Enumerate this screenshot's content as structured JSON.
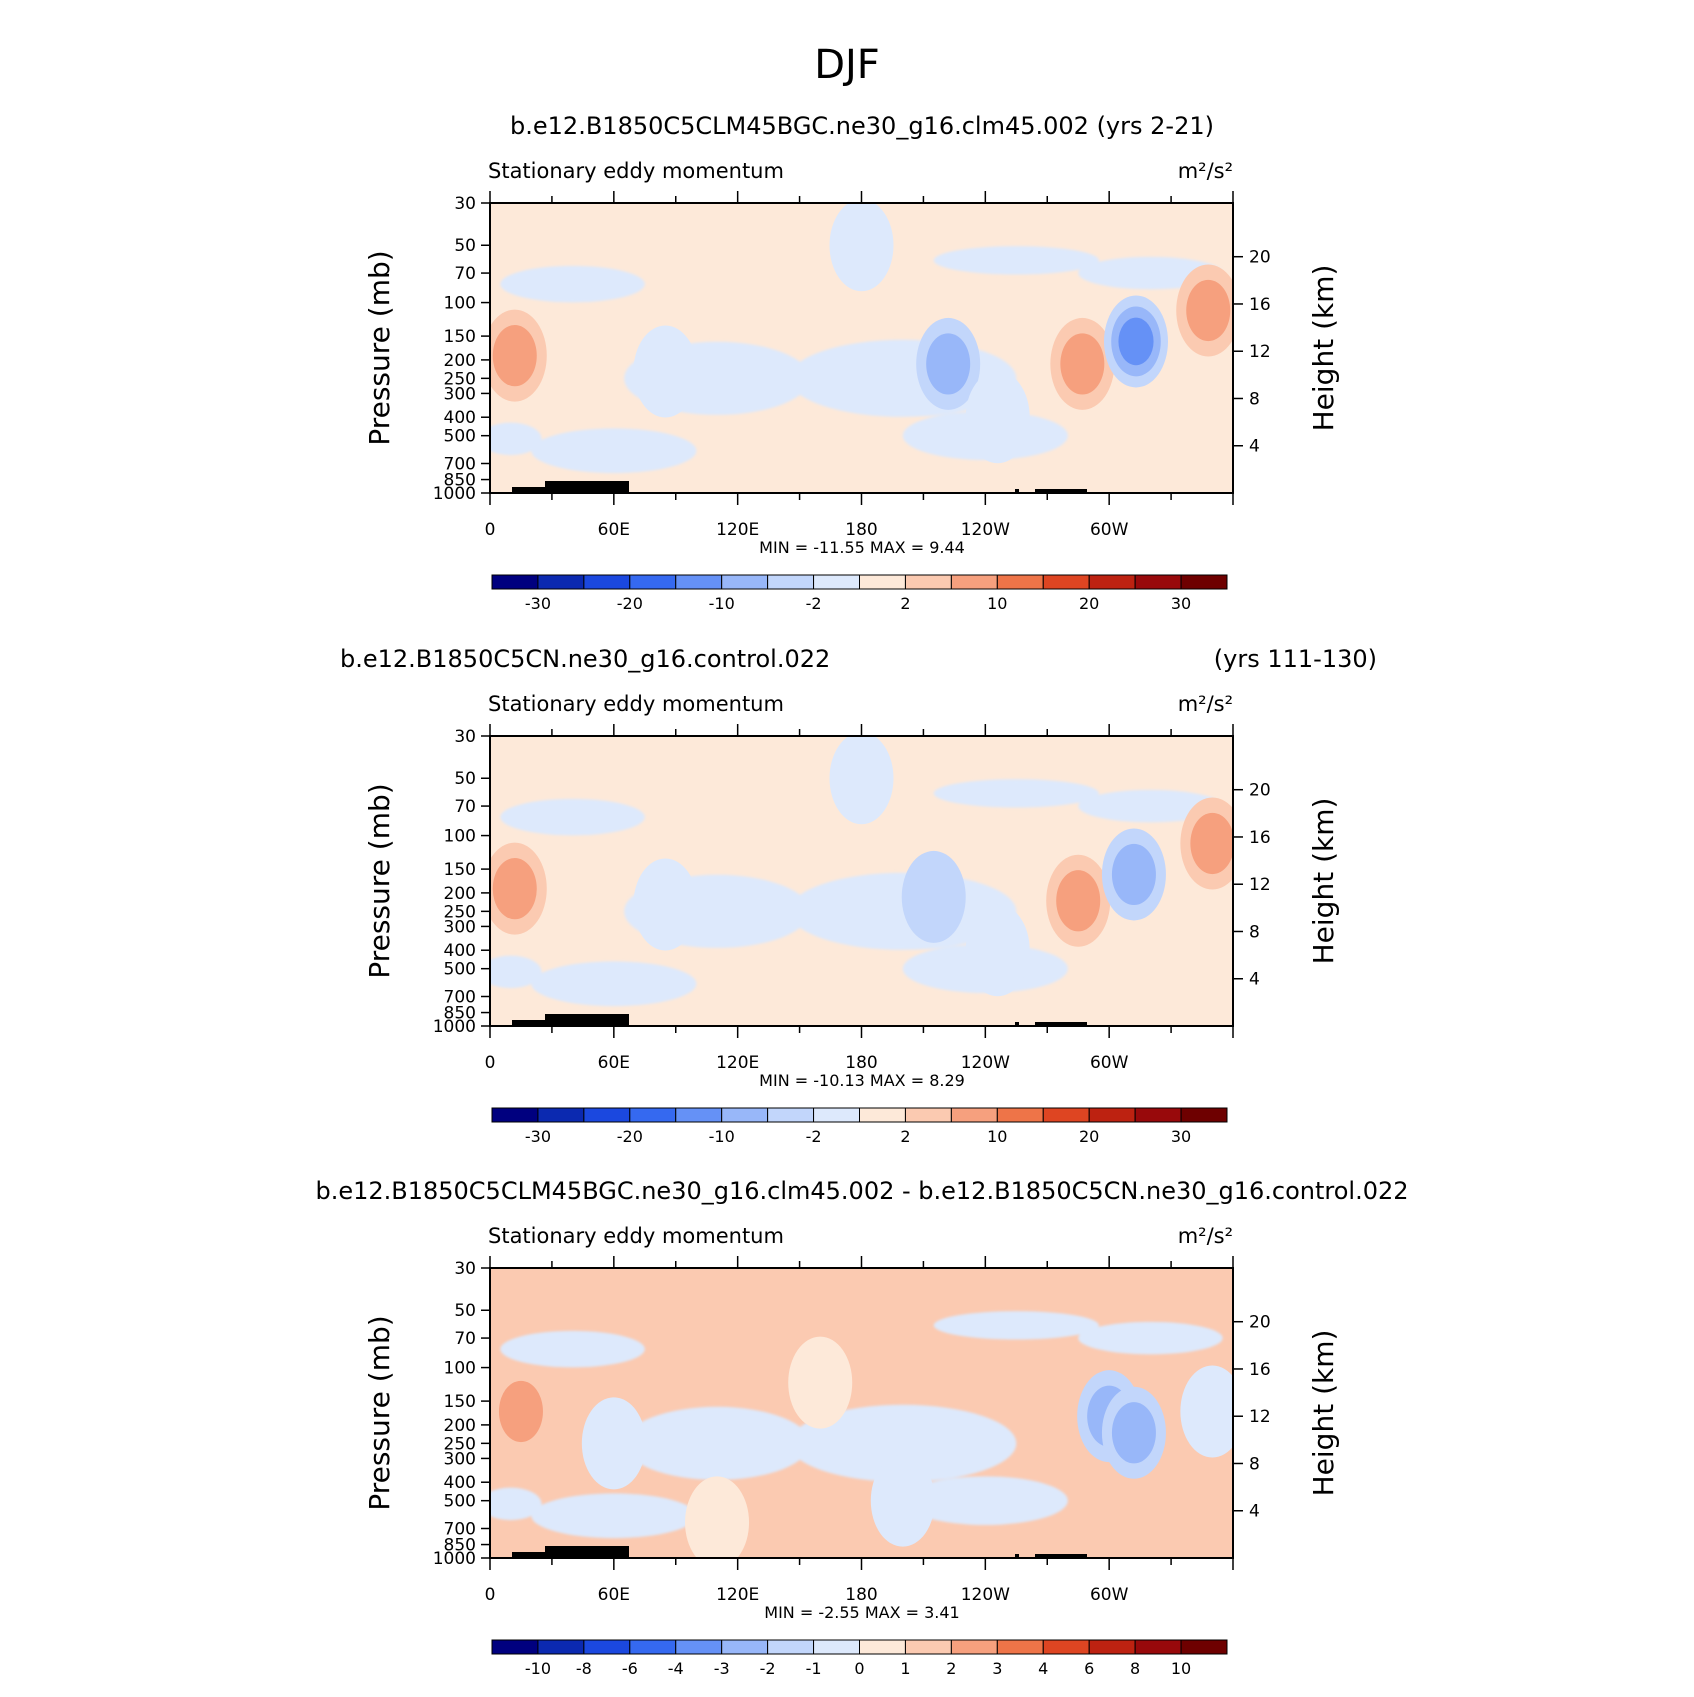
{
  "page_title": "DJF",
  "chart_data": [
    {
      "type": "heatmap",
      "title": "b.e12.B1850C5CLM45BGC.ne30_g16.clm45.002 (yrs 2-21)",
      "title_right": "",
      "variable": "Stationary eddy momentum",
      "units": "m²/s²",
      "xticks": [
        "0",
        "60E",
        "120E",
        "180",
        "120W",
        "60W"
      ],
      "x_tick_values": [
        0,
        60,
        120,
        180,
        240,
        300
      ],
      "xlim": [
        0,
        360
      ],
      "ylabel": "Pressure (mb)",
      "yticks": [
        "30",
        "50",
        "70",
        "100",
        "150",
        "200",
        "250",
        "300",
        "400",
        "500",
        "700",
        "850",
        "1000"
      ],
      "ylim": [
        1000,
        30
      ],
      "y2label": "Height (km)",
      "y2ticks": [
        "4",
        "8",
        "12",
        "16",
        "20"
      ],
      "stats": "MIN = -11.55   MAX =   9.44",
      "min": -11.55,
      "max": 9.44,
      "colorbar_labels": [
        "-30",
        "-20",
        "-10",
        "-2",
        "2",
        "10",
        "20",
        "30"
      ],
      "colorbar_label_indices": [
        1,
        3,
        5,
        7,
        9,
        11,
        13,
        15
      ],
      "features": [
        {
          "lon": 12,
          "p": 190,
          "value": 8
        },
        {
          "lon": 85,
          "p": 230,
          "value": -1
        },
        {
          "lon": 222,
          "p": 210,
          "value": -5
        },
        {
          "lon": 287,
          "p": 210,
          "value": 6
        },
        {
          "lon": 313,
          "p": 160,
          "value": -11
        },
        {
          "lon": 348,
          "p": 110,
          "value": 5
        },
        {
          "lon": 150,
          "p": 700,
          "value": 1.5
        },
        {
          "lon": 246,
          "p": 400,
          "value": -1.5
        },
        {
          "lon": 120,
          "p": 60,
          "value": 1.5
        },
        {
          "lon": 180,
          "p": 50,
          "value": -1.5
        }
      ]
    },
    {
      "type": "heatmap",
      "title": "b.e12.B1850C5CN.ne30_g16.control.022",
      "title_right": "(yrs 111-130)",
      "variable": "Stationary eddy momentum",
      "units": "m²/s²",
      "xticks": [
        "0",
        "60E",
        "120E",
        "180",
        "120W",
        "60W"
      ],
      "x_tick_values": [
        0,
        60,
        120,
        180,
        240,
        300
      ],
      "xlim": [
        0,
        360
      ],
      "ylabel": "Pressure (mb)",
      "yticks": [
        "30",
        "50",
        "70",
        "100",
        "150",
        "200",
        "250",
        "300",
        "400",
        "500",
        "700",
        "850",
        "1000"
      ],
      "ylim": [
        1000,
        30
      ],
      "y2label": "Height (km)",
      "y2ticks": [
        "4",
        "8",
        "12",
        "16",
        "20"
      ],
      "stats": "MIN = -10.13   MAX =   8.29",
      "min": -10.13,
      "max": 8.29,
      "colorbar_labels": [
        "-30",
        "-20",
        "-10",
        "-2",
        "2",
        "10",
        "20",
        "30"
      ],
      "colorbar_label_indices": [
        1,
        3,
        5,
        7,
        9,
        11,
        13,
        15
      ],
      "features": [
        {
          "lon": 12,
          "p": 190,
          "value": 7
        },
        {
          "lon": 85,
          "p": 230,
          "value": -1
        },
        {
          "lon": 215,
          "p": 210,
          "value": -4
        },
        {
          "lon": 285,
          "p": 220,
          "value": 5
        },
        {
          "lon": 312,
          "p": 160,
          "value": -9
        },
        {
          "lon": 350,
          "p": 110,
          "value": 5
        },
        {
          "lon": 150,
          "p": 700,
          "value": 1.5
        },
        {
          "lon": 246,
          "p": 400,
          "value": -1.5
        },
        {
          "lon": 120,
          "p": 60,
          "value": 1.5
        },
        {
          "lon": 180,
          "p": 50,
          "value": -1.5
        }
      ]
    },
    {
      "type": "heatmap",
      "title": "b.e12.B1850C5CLM45BGC.ne30_g16.clm45.002 - b.e12.B1850C5CN.ne30_g16.control.022",
      "title_right": "",
      "variable": "Stationary eddy momentum",
      "units": "m²/s²",
      "xticks": [
        "0",
        "60E",
        "120E",
        "180",
        "120W",
        "60W"
      ],
      "x_tick_values": [
        0,
        60,
        120,
        180,
        240,
        300
      ],
      "xlim": [
        0,
        360
      ],
      "ylabel": "Pressure (mb)",
      "yticks": [
        "30",
        "50",
        "70",
        "100",
        "150",
        "200",
        "250",
        "300",
        "400",
        "500",
        "700",
        "850",
        "1000"
      ],
      "ylim": [
        1000,
        30
      ],
      "y2label": "Height (km)",
      "y2ticks": [
        "4",
        "8",
        "12",
        "16",
        "20"
      ],
      "stats": "MIN =   -2.55   MAX =   3.41",
      "min": -2.55,
      "max": 3.41,
      "colorbar_labels": [
        "-10",
        "-8",
        "-6",
        "-4",
        "-3",
        "-2",
        "-1",
        "0",
        "1",
        "2",
        "3",
        "4",
        "6",
        "8",
        "10"
      ],
      "colorbar_label_indices": [
        1,
        2,
        3,
        4,
        5,
        6,
        7,
        8,
        9,
        10,
        11,
        12,
        13,
        14,
        15
      ],
      "features": [
        {
          "lon": 15,
          "p": 170,
          "value": 2
        },
        {
          "lon": 60,
          "p": 250,
          "value": -0.5
        },
        {
          "lon": 300,
          "p": 180,
          "value": -2.5
        },
        {
          "lon": 312,
          "p": 220,
          "value": -2
        },
        {
          "lon": 350,
          "p": 170,
          "value": -0.5
        },
        {
          "lon": 160,
          "p": 120,
          "value": 0.5
        },
        {
          "lon": 200,
          "p": 500,
          "value": -0.5
        },
        {
          "lon": 110,
          "p": 650,
          "value": 0.5
        }
      ]
    }
  ],
  "colors": {
    "palette": [
      "#00007f",
      "#0b29b0",
      "#1b48df",
      "#3569f0",
      "#6591f6",
      "#98b7f9",
      "#c2d6fb",
      "#dde9fc",
      "#fde9d9",
      "#fbcab1",
      "#f6a07e",
      "#ee7448",
      "#de4522",
      "#bd2211",
      "#98090b",
      "#6e0000"
    ]
  }
}
